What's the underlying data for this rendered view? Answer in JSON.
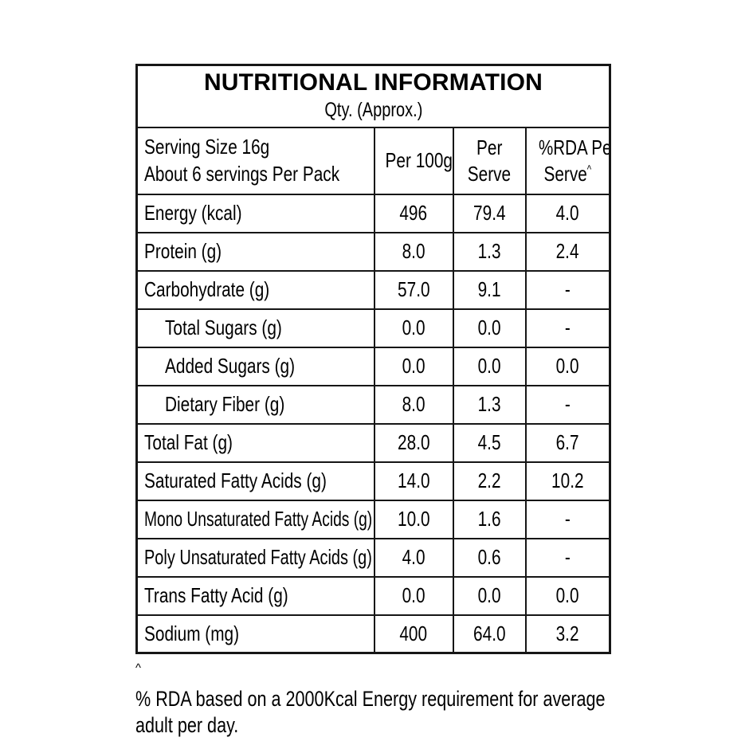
{
  "title": "NUTRITIONAL INFORMATION",
  "subtitle": "Qty. (Approx.)",
  "colors": {
    "text": "#000000",
    "border": "#161616",
    "background": "#ffffff"
  },
  "header": {
    "serving_line1": "Serving Size 16g",
    "serving_line2": "About 6 servings Per Pack",
    "per_100g": "Per 100g",
    "per_serve_line1": "Per",
    "per_serve_line2": "Serve",
    "rda_line1": "%RDA Per",
    "rda_line2": "Serve",
    "rda_sup": "^"
  },
  "rows": [
    {
      "label": "Energy (kcal)",
      "indent": false,
      "per_100g": "496",
      "per_serve": "79.4",
      "rda_per_serve": "4.0"
    },
    {
      "label": "Protein (g)",
      "indent": false,
      "per_100g": "8.0",
      "per_serve": "1.3",
      "rda_per_serve": "2.4"
    },
    {
      "label": "Carbohydrate (g)",
      "indent": false,
      "per_100g": "57.0",
      "per_serve": "9.1",
      "rda_per_serve": "-"
    },
    {
      "label": "Total Sugars (g)",
      "indent": true,
      "per_100g": "0.0",
      "per_serve": "0.0",
      "rda_per_serve": "-"
    },
    {
      "label": "Added Sugars (g)",
      "indent": true,
      "per_100g": "0.0",
      "per_serve": "0.0",
      "rda_per_serve": "0.0"
    },
    {
      "label": "Dietary Fiber (g)",
      "indent": true,
      "per_100g": "8.0",
      "per_serve": "1.3",
      "rda_per_serve": "-"
    },
    {
      "label": "Total Fat (g)",
      "indent": false,
      "per_100g": "28.0",
      "per_serve": "4.5",
      "rda_per_serve": "6.7"
    },
    {
      "label": "Saturated Fatty Acids (g)",
      "indent": false,
      "per_100g": "14.0",
      "per_serve": "2.2",
      "rda_per_serve": "10.2"
    },
    {
      "label": "Mono Unsaturated Fatty Acids (g)",
      "indent": false,
      "per_100g": "10.0",
      "per_serve": "1.6",
      "rda_per_serve": "-"
    },
    {
      "label": "Poly Unsaturated Fatty Acids (g)",
      "indent": false,
      "per_100g": "4.0",
      "per_serve": "0.6",
      "rda_per_serve": "-"
    },
    {
      "label": "Trans Fatty Acid (g)",
      "indent": false,
      "per_100g": "0.0",
      "per_serve": "0.0",
      "rda_per_serve": "0.0"
    },
    {
      "label": "Sodium (mg)",
      "indent": false,
      "per_100g": "400",
      "per_serve": "64.0",
      "rda_per_serve": "3.2"
    }
  ],
  "footnote": {
    "sup": "^",
    "line1": "% RDA based on a 2000Kcal Energy requirement for average",
    "line2": "adult per day."
  }
}
